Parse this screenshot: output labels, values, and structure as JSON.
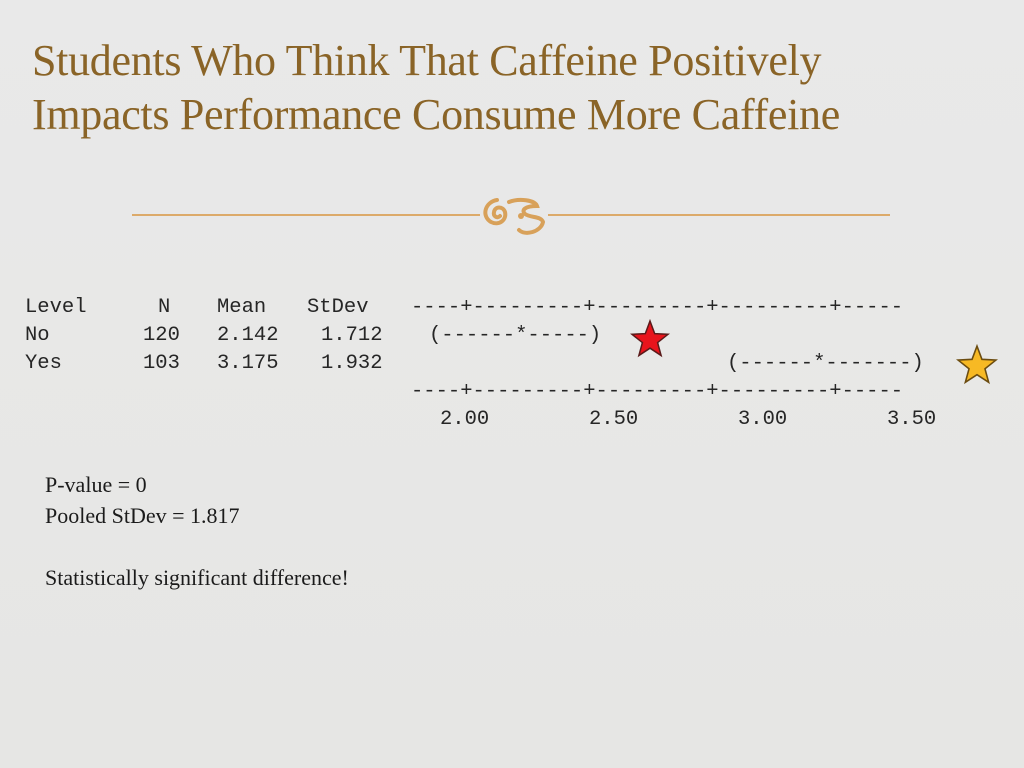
{
  "slide": {
    "title_line1": "Students Who Think That Caffeine Positively",
    "title_line2": "Impacts Performance Consume More Caffeine"
  },
  "ornament_icon": "fleuron-icon",
  "anova": {
    "header": {
      "level": "Level",
      "n": "N",
      "mean": "Mean",
      "stdev": "StDev"
    },
    "axis_rule": "----+---------+---------+---------+-----",
    "rows": [
      {
        "level": "No",
        "n": "120",
        "mean": "2.142",
        "stdev": "1.712",
        "interval": "(------*-----)",
        "marker_color": "#e8141c",
        "marker_icon": "red-star-icon"
      },
      {
        "level": "Yes",
        "n": "103",
        "mean": "3.175",
        "stdev": "1.932",
        "interval": "(------*-------)",
        "marker_color": "#f7b924",
        "marker_icon": "gold-star-icon"
      }
    ],
    "axis_ticks": [
      "2.00",
      "2.50",
      "3.00",
      "3.50"
    ]
  },
  "stats": {
    "p_value": "P-value = 0",
    "pooled_stdev": "Pooled StDev = 1.817",
    "conclusion": "Statistically significant difference!"
  }
}
